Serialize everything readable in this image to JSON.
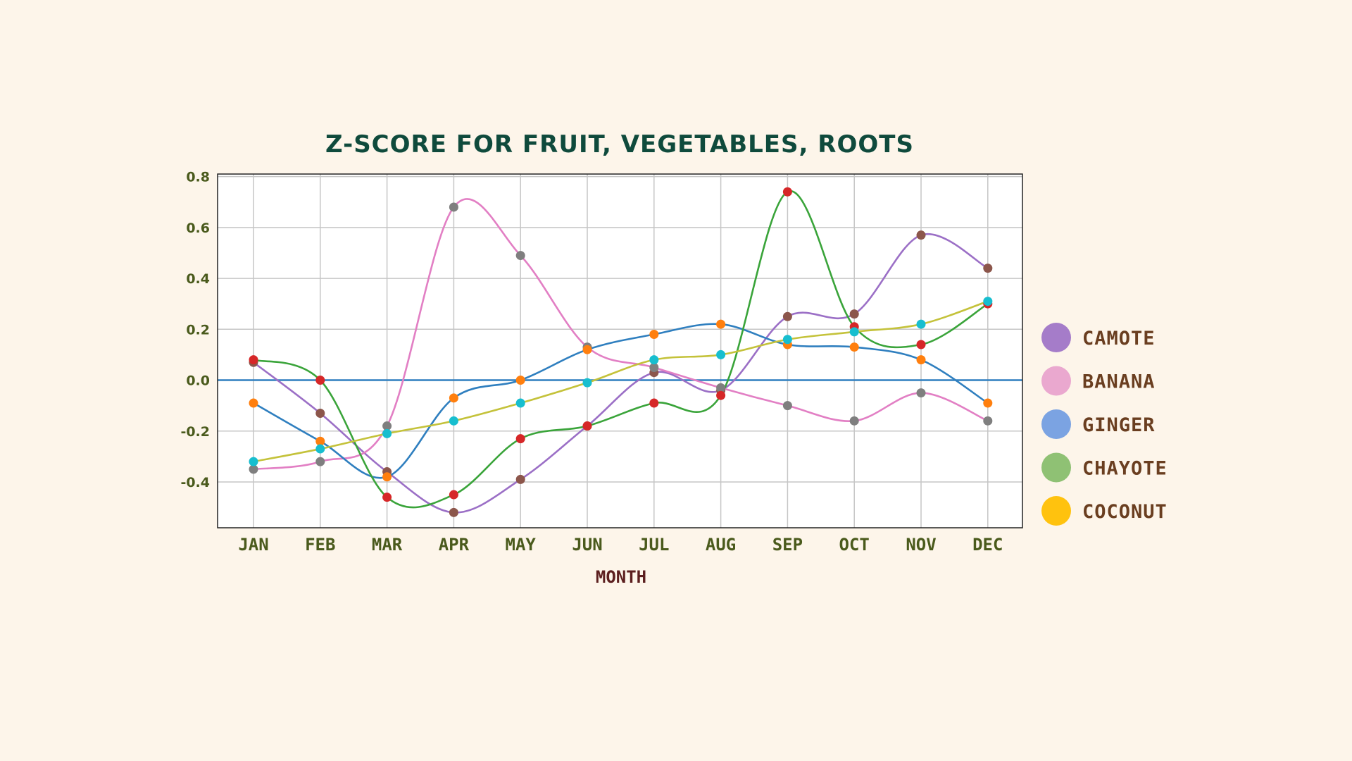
{
  "chart_data": {
    "type": "line",
    "title": "Z-SCORE FOR FRUIT, VEGETABLES, ROOTS",
    "xlabel": "MONTH",
    "ylabel": "",
    "categories": [
      "JAN",
      "FEB",
      "MAR",
      "APR",
      "MAY",
      "JUN",
      "JUL",
      "AUG",
      "SEP",
      "OCT",
      "NOV",
      "DEC"
    ],
    "ylim": [
      -0.58,
      0.81
    ],
    "yticks": [
      "0.8",
      "0.6",
      "0.4",
      "0.2",
      "0.0",
      "-0.2",
      "-0.4"
    ],
    "ytick_values": [
      0.8,
      0.6,
      0.4,
      0.2,
      0.0,
      -0.2,
      -0.4
    ],
    "grid": true,
    "zero_line": 0.0,
    "legend_position": "right",
    "series": [
      {
        "name": "CAMOTE",
        "line_color": "#9b6fc6",
        "marker_color": "#8c564b",
        "values": [
          0.07,
          -0.13,
          -0.36,
          -0.52,
          -0.39,
          -0.18,
          0.03,
          -0.04,
          0.25,
          0.26,
          0.57,
          0.44
        ]
      },
      {
        "name": "BANANA",
        "line_color": "#e27fc4",
        "marker_color": "#7f7f7f",
        "values": [
          -0.35,
          -0.32,
          -0.18,
          0.68,
          0.49,
          0.13,
          0.05,
          -0.03,
          -0.1,
          -0.16,
          -0.05,
          -0.16
        ]
      },
      {
        "name": "GINGER",
        "line_color": "#2f7fbf",
        "marker_color": "#ff7f0e",
        "values": [
          -0.09,
          -0.24,
          -0.38,
          -0.07,
          0.0,
          0.12,
          0.18,
          0.22,
          0.14,
          0.13,
          0.08,
          -0.09
        ]
      },
      {
        "name": "CHAYOTE",
        "line_color": "#3aa43a",
        "marker_color": "#d62728",
        "values": [
          0.08,
          0.0,
          -0.46,
          -0.45,
          -0.23,
          -0.18,
          -0.09,
          -0.06,
          0.74,
          0.21,
          0.14,
          0.3
        ]
      },
      {
        "name": "COCONUT",
        "line_color": "#c4c23a",
        "marker_color": "#17becf",
        "values": [
          -0.32,
          -0.27,
          -0.21,
          -0.16,
          -0.09,
          -0.01,
          0.08,
          0.1,
          0.16,
          0.19,
          0.22,
          0.31
        ]
      }
    ],
    "legend_swatches": [
      "#a57cc9",
      "#eaa8cf",
      "#7ba3e2",
      "#8fc174",
      "#ffc20e"
    ]
  }
}
